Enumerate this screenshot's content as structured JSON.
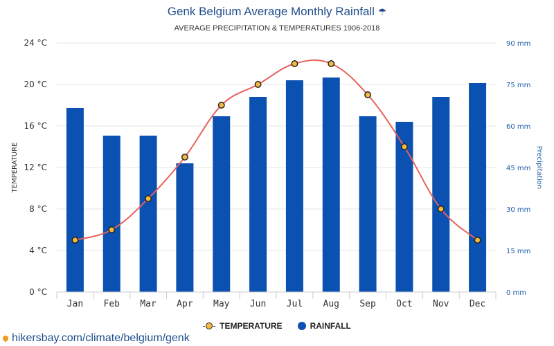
{
  "header": {
    "title": "Genk Belgium Average Monthly Rainfall",
    "title_icon": "umbrella-icon",
    "subtitle": "AVERAGE PRECIPITATION & TEMPERATURES 1906-2018"
  },
  "chart_data": {
    "type": "bar",
    "categories": [
      "Jan",
      "Feb",
      "Mar",
      "Apr",
      "May",
      "Jun",
      "Jul",
      "Aug",
      "Sep",
      "Oct",
      "Nov",
      "Dec"
    ],
    "series": [
      {
        "name": "TEMPERATURE",
        "type": "line",
        "axis": "left",
        "values": [
          5,
          6,
          9,
          13,
          18,
          20,
          22,
          22,
          19,
          14,
          8,
          5
        ],
        "color": "#e8615a",
        "marker_color": "#f6b83f"
      },
      {
        "name": "RAINFALL",
        "type": "bar",
        "axis": "right",
        "values": [
          66.5,
          56.5,
          56.5,
          46.5,
          63.5,
          70.5,
          76.5,
          77.5,
          63.5,
          61.5,
          70.5,
          75.5
        ],
        "color": "#0b51b1"
      }
    ],
    "y_left": {
      "label": "TEMPERATURE",
      "range": [
        0,
        24
      ],
      "ticks": [
        "0 °C",
        "4 °C",
        "8 °C",
        "12 °C",
        "16 °C",
        "20 °C",
        "24 °C"
      ]
    },
    "y_right": {
      "label": "Precipitation",
      "range": [
        0,
        90
      ],
      "ticks": [
        "0 mm",
        "15 mm",
        "30 mm",
        "45 mm",
        "60 mm",
        "75 mm",
        "90 mm"
      ]
    },
    "grid": true,
    "legend_position": "bottom-center"
  },
  "legend": {
    "items": [
      "TEMPERATURE",
      "RAINFALL"
    ]
  },
  "footer": {
    "source": "hikersbay.com/climate/belgium/genk",
    "source_icon": "location-pin-icon"
  }
}
